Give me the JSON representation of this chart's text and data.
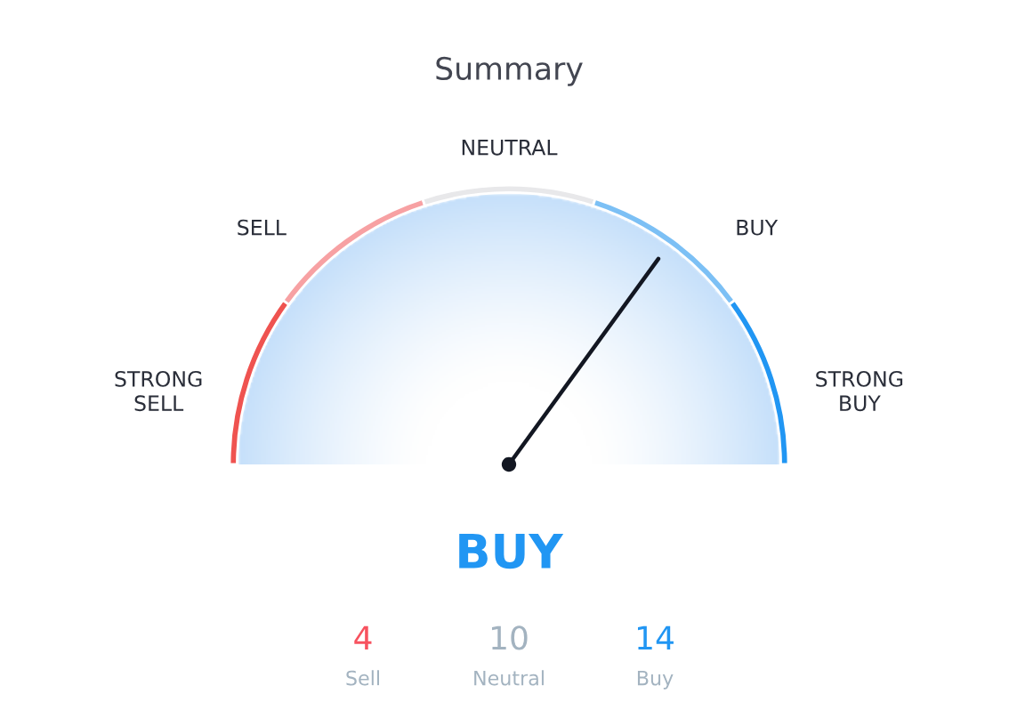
{
  "chart_data": [
    {
      "type": "donut",
      "title": "Summary",
      "categories": [
        "STRONG\nSELL",
        "SELL",
        "NEUTRAL",
        "BUY",
        "STRONG\nBUY"
      ],
      "values": [
        20,
        20,
        20,
        20,
        20
      ],
      "colors": [
        "#ef5350",
        "#f7a1a3",
        "#e8e8ea",
        "#7cc0f5",
        "#2196f3"
      ],
      "needle": "BUY",
      "annotations": [
        "BUY"
      ]
    },
    {
      "type": "other",
      "categories": [
        "Sell",
        "Neutral",
        "Buy"
      ],
      "values": [
        4,
        10,
        14
      ],
      "colors": [
        "#f7525f",
        "#a3b3c0",
        "#2196f3"
      ],
      "data_labels": true
    }
  ]
}
